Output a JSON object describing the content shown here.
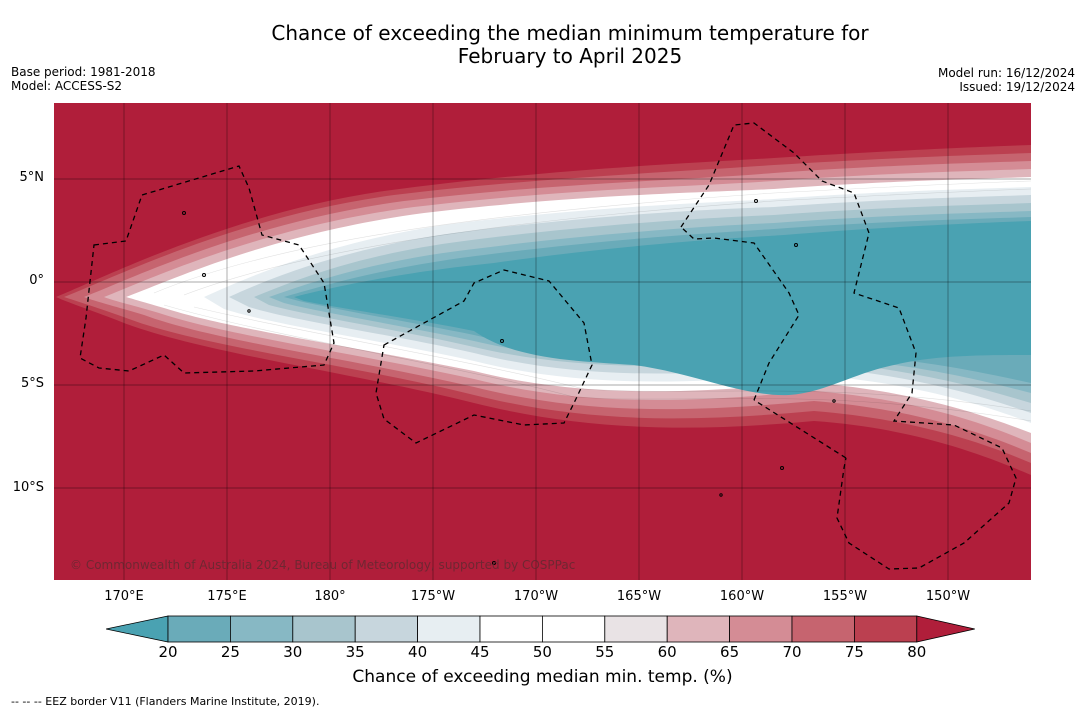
{
  "title": {
    "line1": "Chance of exceeding the median minimum temperature for",
    "line2": "February to April 2025"
  },
  "meta_left": {
    "base_period": "Base period: 1981-2018",
    "model": "Model: ACCESS-S2"
  },
  "meta_right": {
    "model_run": "Model run: 16/12/2024",
    "issued": "Issued: 19/12/2024"
  },
  "map": {
    "lat_labels": [
      "5°N",
      "0°",
      "5°S",
      "10°S"
    ],
    "lon_labels": [
      "170°E",
      "175°E",
      "180°",
      "175°W",
      "170°W",
      "165°W",
      "160°W",
      "155°W",
      "150°W"
    ],
    "credit": "© Commonwealth of Australia 2024, Bureau of Meteorology, supported by COSPPac",
    "colors": {
      "high": "#b01e3a",
      "low": "#4aa2b2",
      "land_outline": "#000000"
    }
  },
  "colorbar": {
    "ticks": [
      "20",
      "25",
      "30",
      "35",
      "40",
      "45",
      "50",
      "55",
      "60",
      "65",
      "70",
      "75",
      "80"
    ],
    "colors": [
      "#4aa2b2",
      "#6aabb9",
      "#87b8c4",
      "#a8c5cd",
      "#c7d6dd",
      "#e7eef2",
      "#ffffff",
      "#ffffff",
      "#e9e3e5",
      "#dfb5bb",
      "#d48c95",
      "#c6646f",
      "#bb4050",
      "#b01e3a"
    ],
    "title": "Chance of exceeding median min. temp. (%)"
  },
  "legend": {
    "text": "--  --  -- EEZ border V11 (Flanders Marine Institute, 2019)."
  }
}
